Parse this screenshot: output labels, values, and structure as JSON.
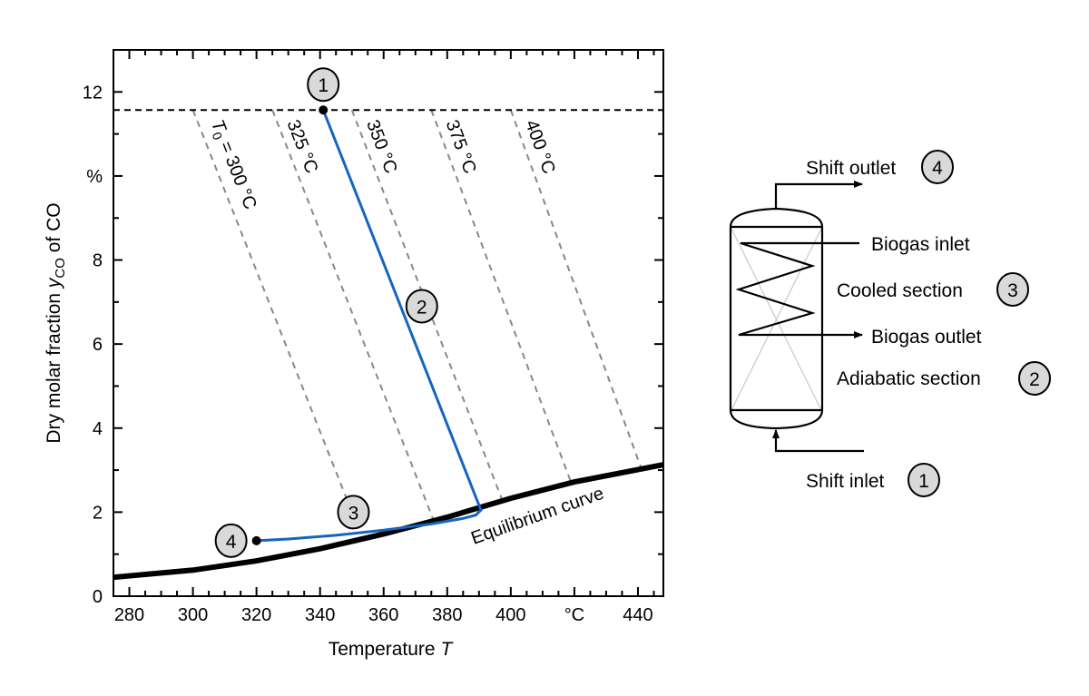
{
  "chart_data": {
    "type": "line",
    "title": "",
    "xlabel": "Temperature",
    "xlabel_symbol": "T",
    "ylabel_prefix": "Dry molar fraction ",
    "ylabel_symbol": "y",
    "ylabel_subscript": "CO",
    "ylabel_suffix": " of CO",
    "xlim": [
      275,
      448
    ],
    "ylim": [
      0,
      13
    ],
    "x_ticks": [
      {
        "v": 280,
        "label": "280"
      },
      {
        "v": 300,
        "label": "300"
      },
      {
        "v": 320,
        "label": "320"
      },
      {
        "v": 340,
        "label": "340"
      },
      {
        "v": 360,
        "label": "360"
      },
      {
        "v": 380,
        "label": "380"
      },
      {
        "v": 400,
        "label": "400"
      },
      {
        "v": 420,
        "label": "°C"
      },
      {
        "v": 440,
        "label": "440"
      }
    ],
    "y_ticks": [
      {
        "v": 0,
        "label": "0"
      },
      {
        "v": 2,
        "label": "2"
      },
      {
        "v": 4,
        "label": "4"
      },
      {
        "v": 6,
        "label": "6"
      },
      {
        "v": 8,
        "label": "8"
      },
      {
        "v": 10,
        "label": "%"
      },
      {
        "v": 12,
        "label": "12"
      }
    ],
    "inlet_level": 11.57,
    "equilibrium": {
      "label": "Equilibrium curve",
      "x": [
        275,
        300,
        320,
        340,
        360,
        380,
        400,
        420,
        448
      ],
      "y": [
        0.45,
        0.62,
        0.84,
        1.13,
        1.48,
        1.88,
        2.33,
        2.72,
        3.13
      ]
    },
    "reactor_path": {
      "color": "#1565c0",
      "x": [
        341,
        390.6,
        389,
        385,
        375,
        360,
        345,
        330,
        320
      ],
      "y": [
        11.57,
        2.05,
        1.93,
        1.85,
        1.72,
        1.57,
        1.45,
        1.36,
        1.32
      ]
    },
    "adiabatic_lines": [
      {
        "label_prefix": "T",
        "label_sub": "0",
        "label": " = 300 °C",
        "t0": 300,
        "end": [
          349.5,
          2.1
        ]
      },
      {
        "label": "325 °C",
        "t0": 325,
        "end": [
          376,
          1.75
        ]
      },
      {
        "label": "350 °C",
        "t0": 350,
        "end": [
          398,
          2.15
        ]
      },
      {
        "label": "375 °C",
        "t0": 375,
        "end": [
          419,
          2.7
        ]
      },
      {
        "label": "400 °C",
        "t0": 400,
        "end": [
          441,
          3.05
        ]
      }
    ],
    "markers": [
      {
        "label": "1",
        "x": 341,
        "y": 11.57,
        "dot": true
      },
      {
        "label": "2",
        "x": 372,
        "y": 6.9,
        "dot": false
      },
      {
        "label": "3",
        "x": 350.5,
        "y": 2.0,
        "dot": false
      },
      {
        "label": "4",
        "x": 320,
        "y": 1.32,
        "dot": true
      }
    ]
  },
  "diagram": {
    "shift_outlet": "Shift outlet",
    "shift_outlet_num": "4",
    "biogas_inlet": "Biogas inlet",
    "cooled_section": "Cooled section",
    "cooled_num": "3",
    "biogas_outlet": "Biogas outlet",
    "adiabatic_section": "Adiabatic section",
    "adiabatic_num": "2",
    "shift_inlet": "Shift inlet",
    "shift_inlet_num": "1"
  },
  "colors": {
    "badge_fill": "#d9d9d9",
    "path": "#1565c0",
    "adiabatic": "#888888"
  }
}
